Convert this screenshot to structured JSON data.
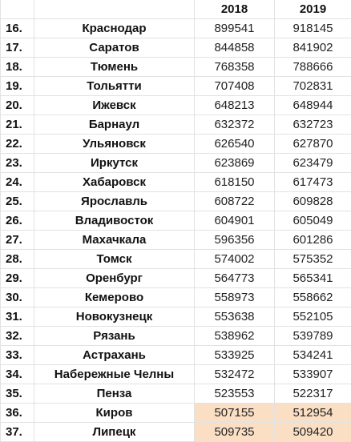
{
  "header": {
    "num": "",
    "city": "",
    "year1": "2018",
    "year2": "2019"
  },
  "highlight_color": "#fbdfc4",
  "rows": [
    {
      "num": "16.",
      "city": "Краснодар",
      "y2018": "899541",
      "y2019": "918145",
      "highlight": false
    },
    {
      "num": "17.",
      "city": "Саратов",
      "y2018": "844858",
      "y2019": "841902",
      "highlight": false
    },
    {
      "num": "18.",
      "city": "Тюмень",
      "y2018": "768358",
      "y2019": "788666",
      "highlight": false
    },
    {
      "num": "19.",
      "city": "Тольятти",
      "y2018": "707408",
      "y2019": "702831",
      "highlight": false
    },
    {
      "num": "20.",
      "city": "Ижевск",
      "y2018": "648213",
      "y2019": "648944",
      "highlight": false
    },
    {
      "num": "21.",
      "city": "Барнаул",
      "y2018": "632372",
      "y2019": "632723",
      "highlight": false
    },
    {
      "num": "22.",
      "city": "Ульяновск",
      "y2018": "626540",
      "y2019": "627870",
      "highlight": false
    },
    {
      "num": "23.",
      "city": "Иркутск",
      "y2018": "623869",
      "y2019": "623479",
      "highlight": false
    },
    {
      "num": "24.",
      "city": "Хабаровск",
      "y2018": "618150",
      "y2019": "617473",
      "highlight": false
    },
    {
      "num": "25.",
      "city": "Ярославль",
      "y2018": "608722",
      "y2019": "609828",
      "highlight": false
    },
    {
      "num": "26.",
      "city": "Владивосток",
      "y2018": "604901",
      "y2019": "605049",
      "highlight": false
    },
    {
      "num": "27.",
      "city": "Махачкала",
      "y2018": "596356",
      "y2019": "601286",
      "highlight": false
    },
    {
      "num": "28.",
      "city": "Томск",
      "y2018": "574002",
      "y2019": "575352",
      "highlight": false
    },
    {
      "num": "29.",
      "city": "Оренбург",
      "y2018": "564773",
      "y2019": "565341",
      "highlight": false
    },
    {
      "num": "30.",
      "city": "Кемерово",
      "y2018": "558973",
      "y2019": "558662",
      "highlight": false
    },
    {
      "num": "31.",
      "city": "Новокузнецк",
      "y2018": "553638",
      "y2019": "552105",
      "highlight": false
    },
    {
      "num": "32.",
      "city": "Рязань",
      "y2018": "538962",
      "y2019": "539789",
      "highlight": false
    },
    {
      "num": "33.",
      "city": "Астрахань",
      "y2018": "533925",
      "y2019": "534241",
      "highlight": false
    },
    {
      "num": "34.",
      "city": "Набережные Челны",
      "y2018": "532472",
      "y2019": "533907",
      "highlight": false
    },
    {
      "num": "35.",
      "city": "Пенза",
      "y2018": "523553",
      "y2019": "522317",
      "highlight": false
    },
    {
      "num": "36.",
      "city": "Киров",
      "y2018": "507155",
      "y2019": "512954",
      "highlight": true
    },
    {
      "num": "37.",
      "city": "Липецк",
      "y2018": "509735",
      "y2019": "509420",
      "highlight": true
    }
  ]
}
